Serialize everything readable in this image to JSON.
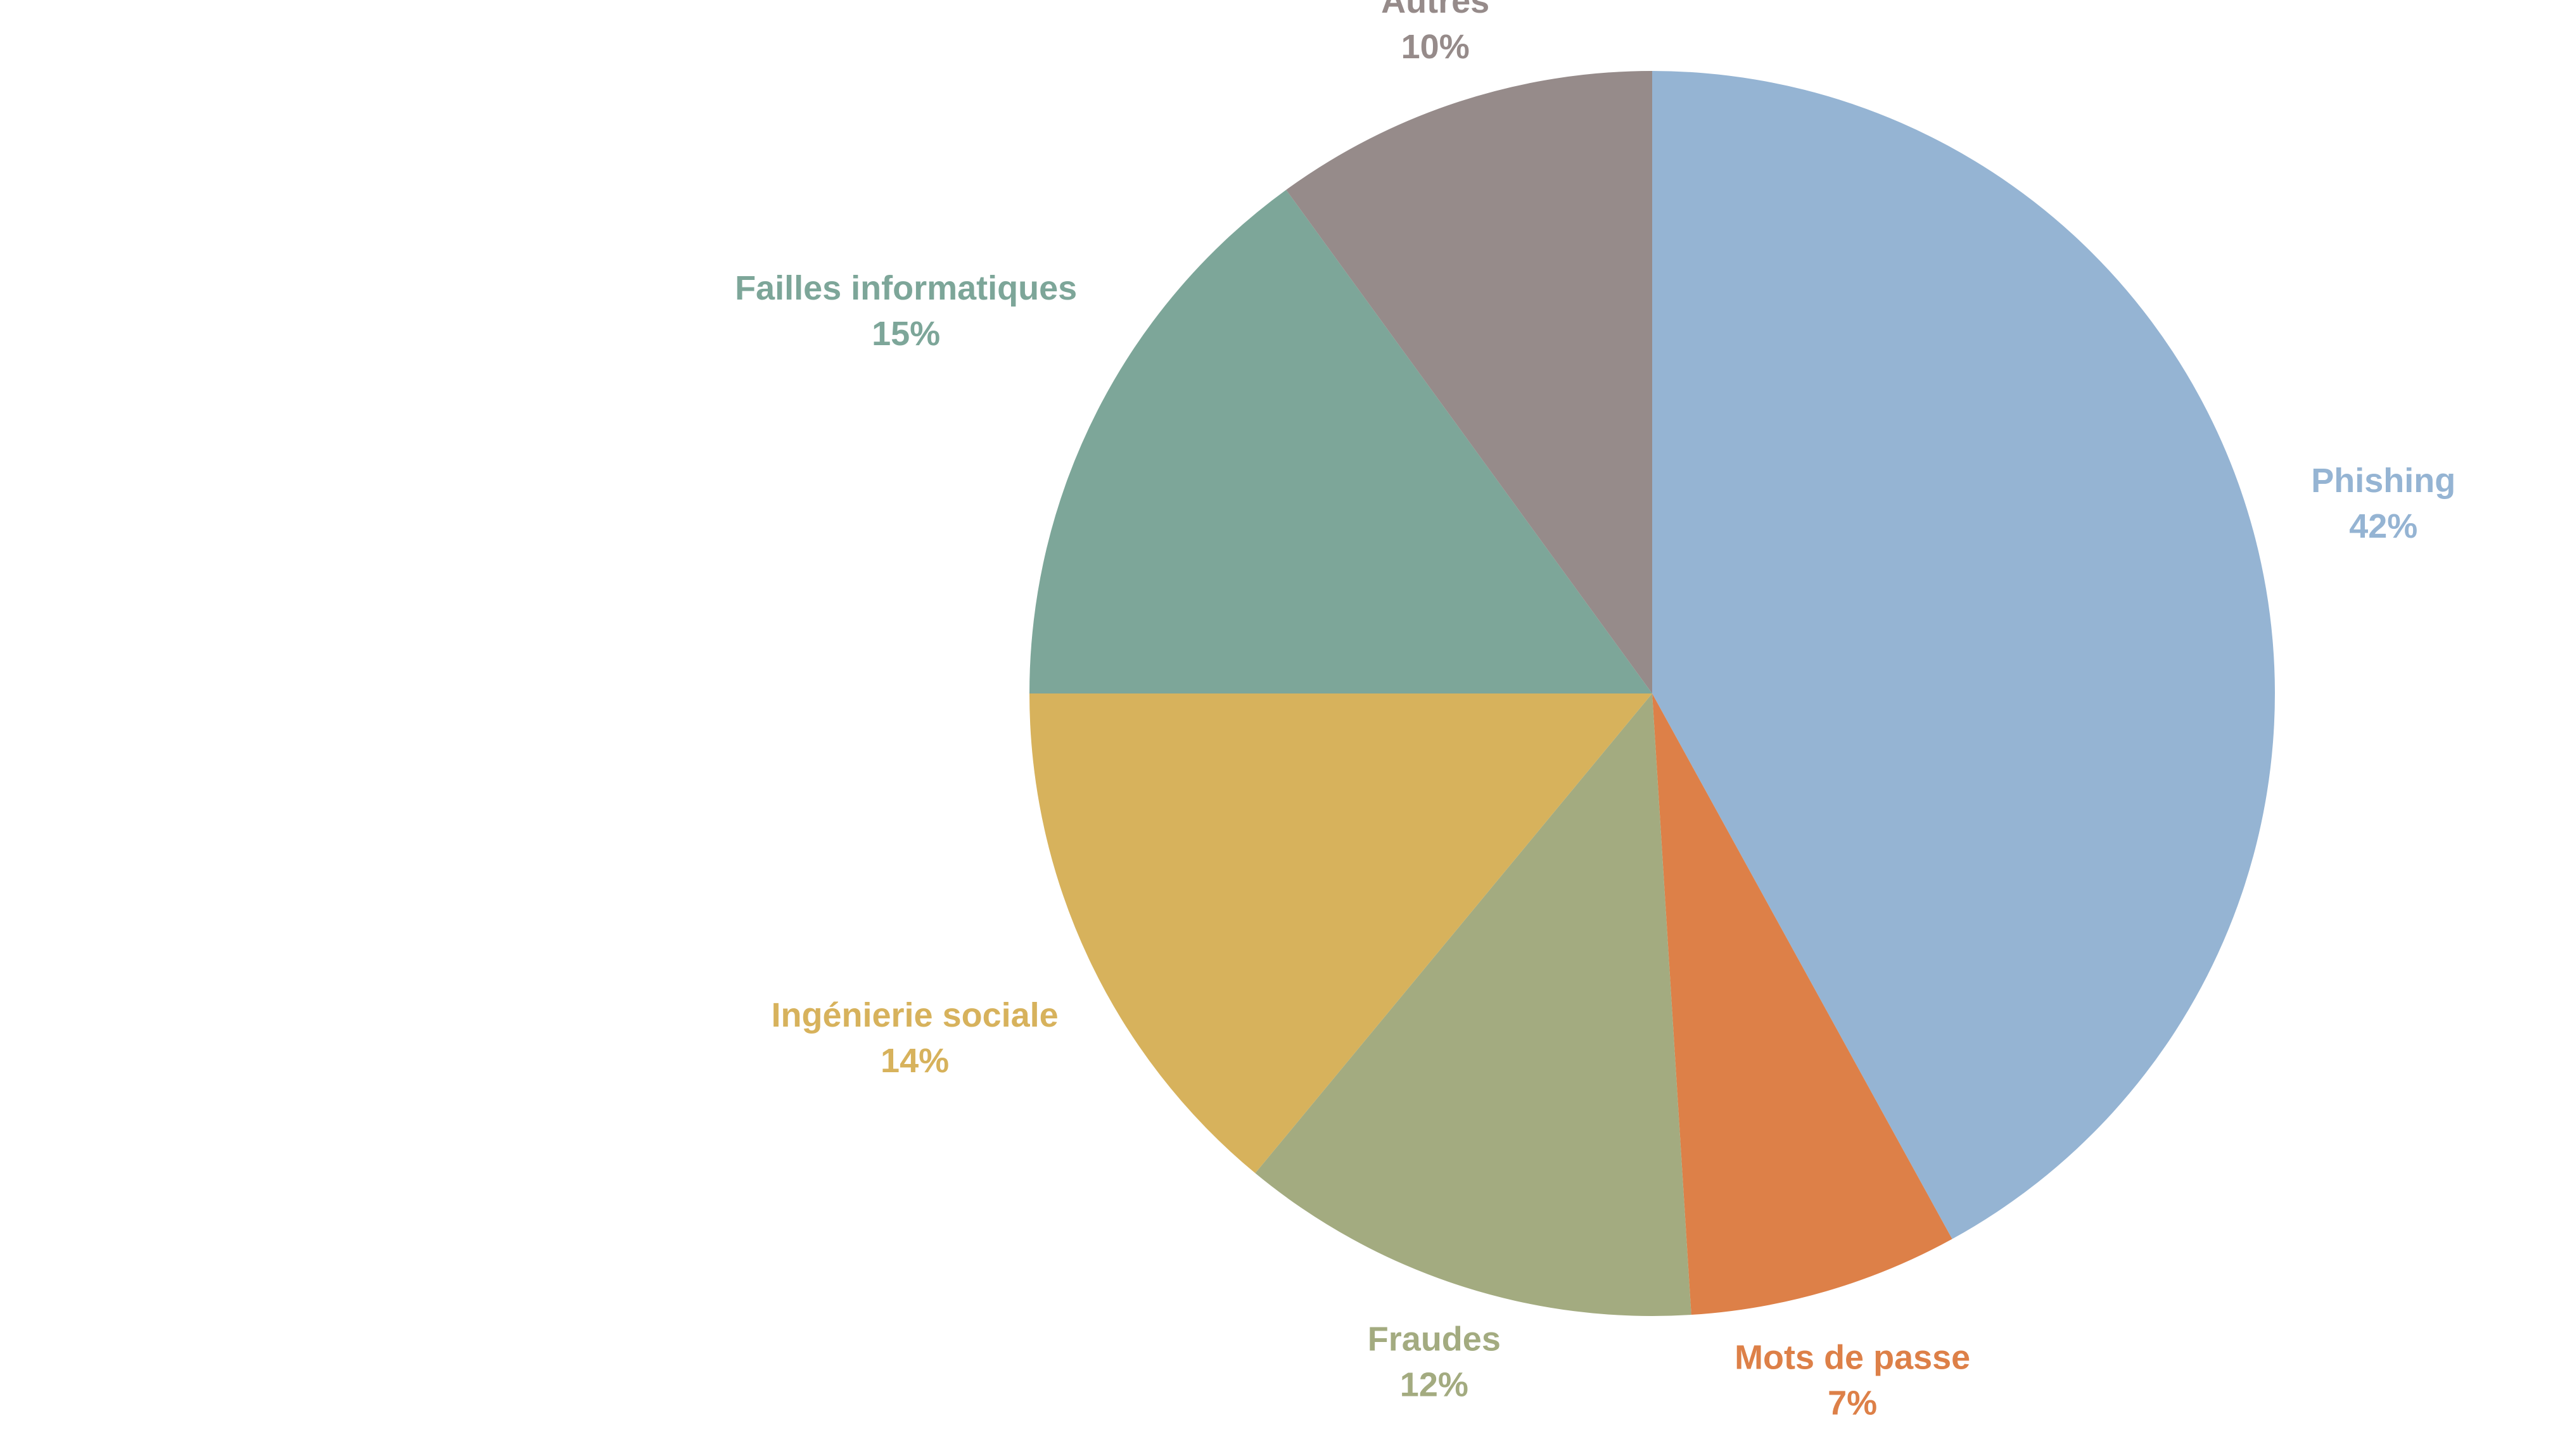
{
  "chart_data": {
    "type": "pie",
    "categories": [
      "Phishing",
      "Mots de passe",
      "Fraudes",
      "Ingénierie sociale",
      "Failles informatiques",
      "Autres"
    ],
    "values": [
      42,
      7,
      12,
      14,
      15,
      10
    ],
    "value_labels": [
      "42%",
      "7%",
      "12%",
      "14%",
      "15%",
      "10%"
    ],
    "colors": [
      "#95b4d3",
      "#dd8048",
      "#a3ab80",
      "#d7b25c",
      "#7da699",
      "#968b8a"
    ]
  }
}
